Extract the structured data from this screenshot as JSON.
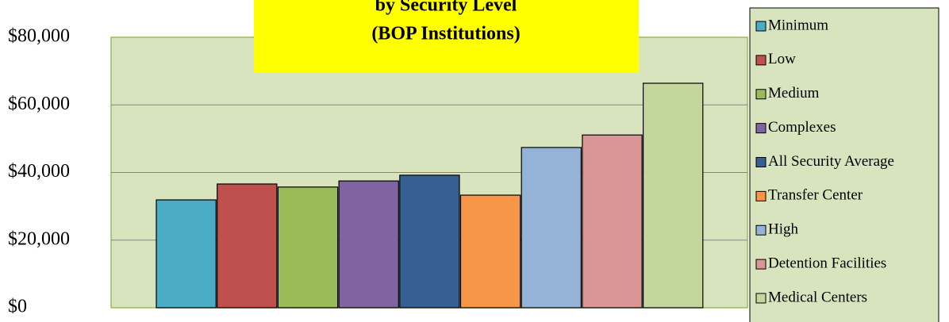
{
  "chart_data": {
    "type": "bar",
    "title": [
      "by Security Level",
      "(BOP Institutions)"
    ],
    "ylim": [
      0,
      80000
    ],
    "yticks": [
      {
        "value": 0,
        "label": "$0"
      },
      {
        "value": 20000,
        "label": "$20,000"
      },
      {
        "value": 40000,
        "label": "$40,000"
      },
      {
        "value": 60000,
        "label": "$60,000"
      },
      {
        "value": 80000,
        "label": "$80,000"
      }
    ],
    "grid": true,
    "legend": "right",
    "series": [
      {
        "name": "Minimum",
        "color": "#4bacc6",
        "values": [
          31900
        ]
      },
      {
        "name": "Low",
        "color": "#c0504d",
        "values": [
          36600
        ]
      },
      {
        "name": "Medium",
        "color": "#9bbb59",
        "values": [
          35700
        ]
      },
      {
        "name": "Complexes",
        "color": "#8064a2",
        "values": [
          37500
        ]
      },
      {
        "name": "All Security Average",
        "color": "#366092",
        "values": [
          39200
        ]
      },
      {
        "name": "Transfer Center",
        "color": "#f79646",
        "values": [
          33300
        ]
      },
      {
        "name": "High",
        "color": "#95b3d7",
        "values": [
          47400
        ]
      },
      {
        "name": "Detention Facilities",
        "color": "#d99694",
        "values": [
          51100
        ]
      },
      {
        "name": "Medical Centers",
        "color": "#c3d69b",
        "values": [
          66400
        ]
      }
    ]
  }
}
